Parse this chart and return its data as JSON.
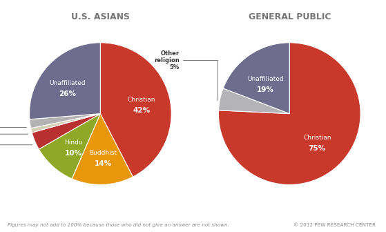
{
  "title1": "U.S. ASIANS",
  "title2": "GENERAL PUBLIC",
  "chart1_values": [
    42,
    14,
    10,
    4,
    1,
    2,
    26
  ],
  "chart1_colors": [
    "#c8392b",
    "#e8970a",
    "#8fa828",
    "#c8392b",
    "#d8d4b8",
    "#b8b8b8",
    "#6e6d8e"
  ],
  "chart1_muslim_color": "#b83030",
  "chart2_values": [
    75,
    5,
    19
  ],
  "chart2_colors": [
    "#c8392b",
    "#b8b8bc",
    "#6e6d8e"
  ],
  "title_color": "#777777",
  "label_color_dark": "#333333",
  "label_color_white": "#ffffff",
  "footnote": "Figures may not add to 100% because those who did not give an answer are not shown.",
  "copyright": "© 2012 PEW RESEARCH CENTER",
  "bg_color": "#ffffff"
}
